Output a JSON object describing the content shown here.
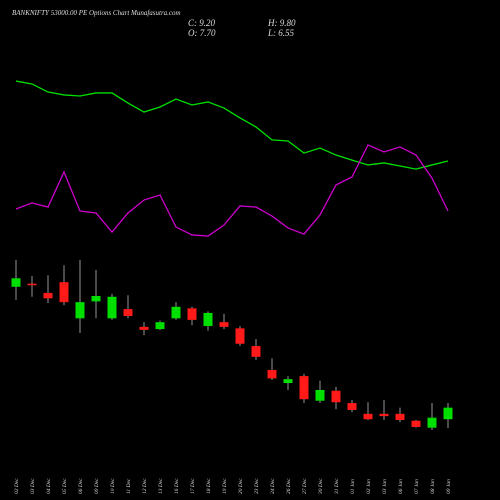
{
  "chart_data": {
    "type": "candlestick",
    "title": "BANKNIFTY 53000.00 PE Options Chart Munafasutra.com",
    "info": [
      "C: 9.20",
      "H: 9.80",
      "O: 7.70",
      "L: 6.55"
    ],
    "categories": [
      "02 Dec",
      "03 Dec",
      "04 Dec",
      "05 Dec",
      "06 Dec",
      "09 Dec",
      "10 Dec",
      "11 Dec",
      "12 Dec",
      "13 Dec",
      "16 Dec",
      "17 Dec",
      "18 Dec",
      "19 Dec",
      "20 Dec",
      "23 Dec",
      "24 Dec",
      "26 Dec",
      "27 Dec",
      "30 Dec",
      "31 Dec",
      "01 Jan",
      "02 Jan",
      "03 Jan",
      "06 Jan",
      "07 Jan",
      "08 Jan",
      "09 Jan"
    ],
    "open": [
      24.9,
      25.3,
      24.1,
      25.5,
      20.8,
      23.0,
      20.8,
      22.0,
      19.7,
      19.4,
      20.8,
      22.1,
      19.8,
      20.3,
      19.5,
      17.2,
      14.1,
      12.4,
      13.3,
      10.1,
      11.4,
      9.8,
      8.4,
      8.4,
      8.4,
      7.5,
      6.6,
      7.7
    ],
    "high": [
      28.4,
      26.3,
      26.4,
      27.7,
      28.4,
      27.1,
      24.0,
      23.8,
      20.3,
      20.5,
      22.9,
      22.3,
      21.7,
      21.4,
      19.8,
      18.1,
      15.6,
      13.3,
      13.6,
      12.7,
      11.9,
      10.2,
      9.9,
      10.2,
      9.2,
      7.6,
      9.8,
      9.8
    ],
    "low": [
      23.2,
      23.6,
      22.8,
      22.5,
      18.9,
      20.8,
      20.6,
      20.8,
      18.6,
      19.3,
      20.6,
      19.9,
      19.2,
      19.4,
      17.2,
      15.4,
      12.8,
      11.5,
      9.8,
      9.8,
      9.0,
      8.6,
      7.6,
      7.6,
      7.3,
      6.6,
      6.3,
      6.55
    ],
    "close": [
      26.0,
      25.1,
      23.4,
      22.9,
      22.9,
      23.7,
      23.6,
      21.1,
      19.3,
      20.3,
      22.3,
      20.6,
      21.5,
      19.7,
      17.5,
      15.8,
      13.0,
      12.9,
      10.3,
      11.5,
      9.9,
      8.9,
      7.7,
      8.1,
      7.6,
      6.7,
      7.9,
      9.2
    ],
    "up_color": "#00e000",
    "down_color": "#ff1a1a",
    "wick_color": "#bbbbbb",
    "ylim": [
      5,
      30
    ],
    "indicator": {
      "ylim": [
        0,
        100
      ],
      "series": [
        {
          "color": "#00e000",
          "values": [
            88.3,
            86.7,
            82.2,
            80.6,
            80,
            81.7,
            81.7,
            76.1,
            71.1,
            73.9,
            78.3,
            75,
            76.7,
            73.3,
            67.8,
            62.8,
            55.6,
            55,
            48.3,
            51.1,
            47.2,
            44.4,
            41.7,
            42.8,
            41.1,
            39.4,
            41.7,
            43.9
          ]
        },
        {
          "color": "#cc00cc",
          "values": [
            17.2,
            20.6,
            18.3,
            37.8,
            16.1,
            15,
            4.4,
            15,
            22.2,
            25,
            7.2,
            2.8,
            2.2,
            8.3,
            18.9,
            18.3,
            13.3,
            6.7,
            3.3,
            13.9,
            30.6,
            35,
            52.8,
            48.9,
            51.7,
            47.2,
            34.4,
            16.1
          ]
        }
      ]
    }
  }
}
